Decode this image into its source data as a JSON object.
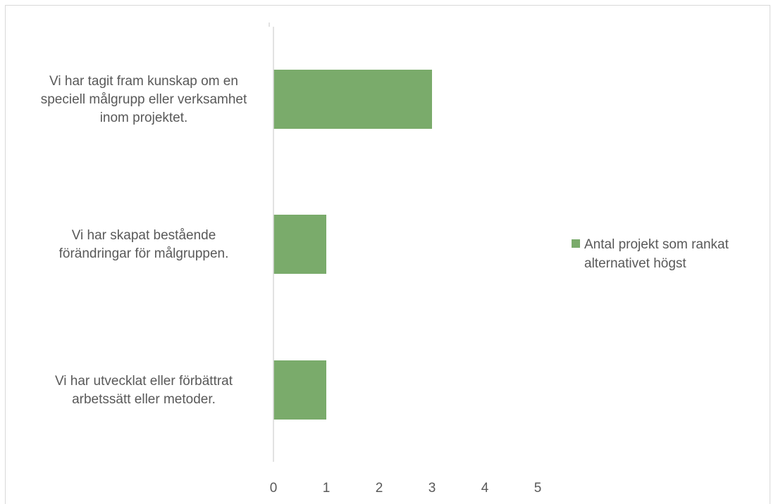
{
  "chart_data": {
    "type": "bar",
    "orientation": "horizontal",
    "title": "",
    "xlabel": "",
    "ylabel": "",
    "categories": [
      [
        "Vi har tagit fram kunskap om en",
        "speciell målgrupp eller verksamhet",
        "inom projektet."
      ],
      [
        "Vi har skapat bestående",
        "förändringar för målgruppen."
      ],
      [
        "Vi har utvecklat eller förbättrat",
        "arbetssätt eller metoder."
      ]
    ],
    "series": [
      {
        "name": "Antal projekt som rankat alternativet högst",
        "values": [
          3,
          1,
          1
        ]
      }
    ],
    "legend_lines": [
      "Antal projekt som rankat",
      "alternativet högst"
    ],
    "xlim": [
      0,
      5
    ],
    "xticks": [
      "0",
      "1",
      "2",
      "3",
      "4",
      "5"
    ],
    "grid": false,
    "legend_position": "right",
    "colors": {
      "bar": "#7aab6b",
      "axis": "#d9d9d9",
      "text": "#595959"
    }
  }
}
